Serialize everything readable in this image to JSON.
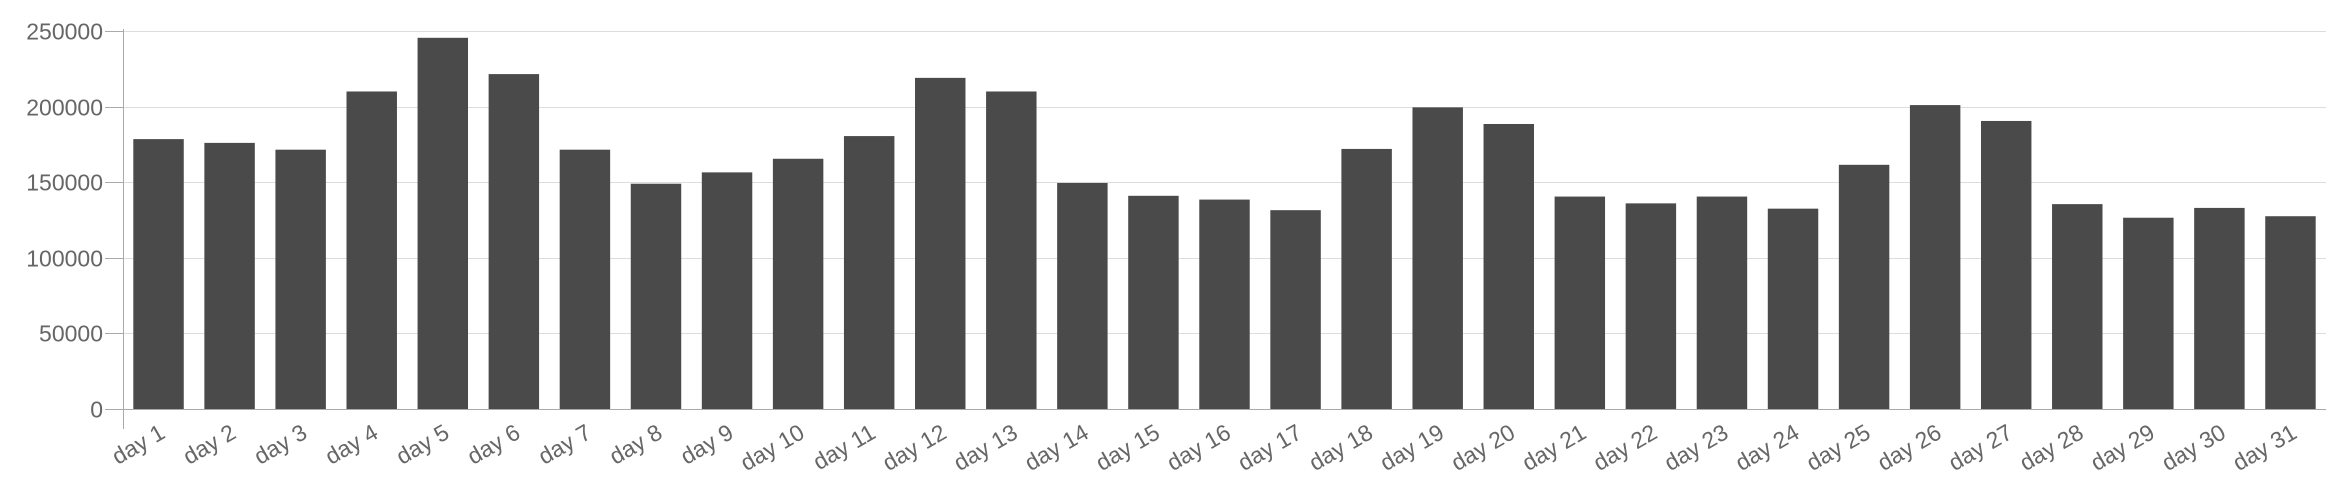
{
  "chart_data": {
    "type": "bar",
    "title": "",
    "xlabel": "",
    "ylabel": "",
    "categories": [
      "day 1",
      "day 2",
      "day 3",
      "day 4",
      "day 5",
      "day 6",
      "day 7",
      "day 8",
      "day 9",
      "day 10",
      "day 11",
      "day 12",
      "day 13",
      "day 14",
      "day 15",
      "day 16",
      "day 17",
      "day 18",
      "day 19",
      "day 20",
      "day 21",
      "day 22",
      "day 23",
      "day 24",
      "day 25",
      "day 26",
      "day 27",
      "day 28",
      "day 29",
      "day 30",
      "day 31"
    ],
    "values": [
      178500,
      176000,
      171500,
      210000,
      245500,
      221500,
      171500,
      149000,
      156500,
      165500,
      180500,
      219000,
      210000,
      149500,
      141000,
      138500,
      131500,
      172000,
      199500,
      188500,
      140500,
      136000,
      140500,
      132500,
      161500,
      201000,
      190500,
      135500,
      126500,
      133000,
      127500
    ],
    "ylim": [
      0,
      250000
    ],
    "yticks": [
      0,
      50000,
      100000,
      150000,
      200000,
      250000
    ],
    "ytick_labels": [
      "0",
      "50000",
      "100000",
      "150000",
      "200000",
      "250000"
    ],
    "grid": true,
    "legend": "none",
    "colors": {
      "bar": "#4a4a4a",
      "grid": "#dddddd",
      "axis": "#aaaaaa",
      "tick_text": "#666666"
    }
  }
}
